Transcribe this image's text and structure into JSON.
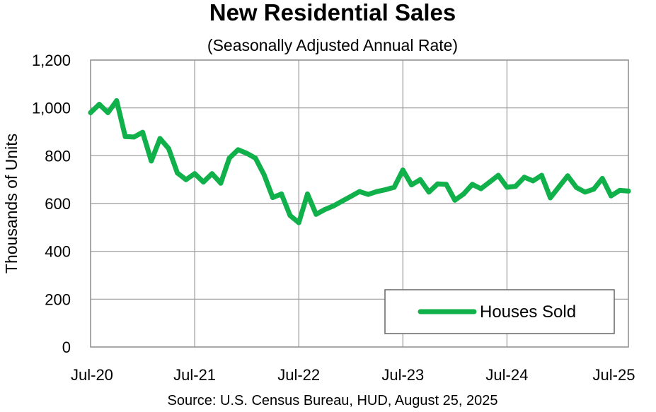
{
  "chart_data": {
    "type": "line",
    "title": "New Residential Sales",
    "subtitle": "(Seasonally Adjusted Annual Rate)",
    "ylabel": "Thousands of Units",
    "xlabel": "",
    "ylim": [
      0,
      1200
    ],
    "y_ticks": [
      0,
      200,
      400,
      600,
      800,
      1000,
      1200
    ],
    "y_tick_labels": [
      "0",
      "200",
      "400",
      "600",
      "800",
      "1,000",
      "1,200"
    ],
    "x_tick_labels": [
      "Jul-20",
      "Jul-21",
      "Jul-22",
      "Jul-23",
      "Jul-24",
      "Jul-25"
    ],
    "x_tick_positions": [
      0,
      12,
      24,
      36,
      48,
      60
    ],
    "grid": true,
    "legend_position": "bottom-right",
    "series": [
      {
        "name": "Houses Sold",
        "color": "#10b04a",
        "values": [
          980,
          1015,
          980,
          1030,
          880,
          878,
          898,
          778,
          872,
          830,
          728,
          700,
          725,
          690,
          725,
          685,
          790,
          825,
          810,
          790,
          720,
          625,
          640,
          550,
          520,
          640,
          555,
          575,
          590,
          610,
          630,
          650,
          638,
          650,
          658,
          668,
          740,
          678,
          700,
          648,
          682,
          680,
          614,
          640,
          680,
          662,
          690,
          718,
          668,
          672,
          710,
          695,
          718,
          624,
          670,
          716,
          667,
          648,
          660,
          705,
          632,
          655,
          652
        ]
      }
    ],
    "source": "Source:  U.S. Census Bureau, HUD, August 25, 2025"
  }
}
